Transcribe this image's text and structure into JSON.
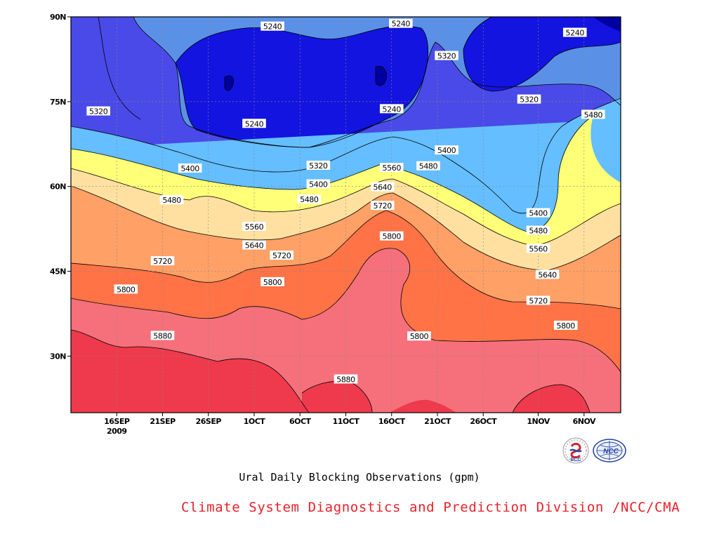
{
  "chart_data": {
    "type": "contour",
    "title": "Ural Daily Blocking Observations (gpm)",
    "zunits": "gpm",
    "xlabel": "",
    "ylabel": "",
    "y_ticks": [
      "90N",
      "75N",
      "60N",
      "45N",
      "30N"
    ],
    "y_tick_values": [
      90,
      75,
      60,
      45,
      30
    ],
    "ylim": [
      20,
      90
    ],
    "xlim": [
      "2009-09-11",
      "2009-11-10"
    ],
    "x_ticks": [
      {
        "label": "16SEP",
        "date": "2009-09-16",
        "sub": "2009"
      },
      {
        "label": "21SEP",
        "date": "2009-09-21",
        "sub": ""
      },
      {
        "label": "26SEP",
        "date": "2009-09-26",
        "sub": ""
      },
      {
        "label": "1OCT",
        "date": "2009-10-01",
        "sub": ""
      },
      {
        "label": "6OCT",
        "date": "2009-10-06",
        "sub": ""
      },
      {
        "label": "11OCT",
        "date": "2009-10-11",
        "sub": ""
      },
      {
        "label": "16OCT",
        "date": "2009-10-16",
        "sub": ""
      },
      {
        "label": "21OCT",
        "date": "2009-10-21",
        "sub": ""
      },
      {
        "label": "26OCT",
        "date": "2009-10-26",
        "sub": ""
      },
      {
        "label": "1NOV",
        "date": "2009-11-01",
        "sub": ""
      },
      {
        "label": "6NOV",
        "date": "2009-11-06",
        "sub": ""
      }
    ],
    "grid": true,
    "levels": [
      5160,
      5240,
      5320,
      5400,
      5480,
      5560,
      5640,
      5720,
      5800,
      5880
    ],
    "fill_colors": [
      "#0000a0",
      "#1414e0",
      "#4a4ae8",
      "#5a91e6",
      "#64beff",
      "#ffff78",
      "#ffe0a0",
      "#ffa066",
      "#ff7346",
      "#f5707a",
      "#ee3a4c"
    ],
    "contour_labels": [
      {
        "value": "5240",
        "date": "2009-10-03",
        "lat": 88.3
      },
      {
        "value": "5240",
        "date": "2009-10-17",
        "lat": 88.8
      },
      {
        "value": "5240",
        "date": "2009-11-05",
        "lat": 87.2
      },
      {
        "value": "5320",
        "date": "2009-10-22",
        "lat": 83.1
      },
      {
        "value": "5320",
        "date": "2009-09-14",
        "lat": 73.3
      },
      {
        "value": "5320",
        "date": "2009-10-31",
        "lat": 75.4
      },
      {
        "value": "5240",
        "date": "2009-10-16",
        "lat": 73.7
      },
      {
        "value": "5240",
        "date": "2009-10-01",
        "lat": 71.1
      },
      {
        "value": "5480",
        "date": "2009-11-07",
        "lat": 72.7
      },
      {
        "value": "5400",
        "date": "2009-10-22",
        "lat": 66.4
      },
      {
        "value": "5320",
        "date": "2009-10-08",
        "lat": 63.7
      },
      {
        "value": "5560",
        "date": "2009-10-16",
        "lat": 63.3
      },
      {
        "value": "5480",
        "date": "2009-10-20",
        "lat": 63.6
      },
      {
        "value": "5400",
        "date": "2009-09-24",
        "lat": 63.2
      },
      {
        "value": "5400",
        "date": "2009-10-08",
        "lat": 60.4
      },
      {
        "value": "5640",
        "date": "2009-10-15",
        "lat": 59.9
      },
      {
        "value": "5480",
        "date": "2009-09-22",
        "lat": 57.6
      },
      {
        "value": "5480",
        "date": "2009-10-07",
        "lat": 57.7
      },
      {
        "value": "5720",
        "date": "2009-10-15",
        "lat": 56.6
      },
      {
        "value": "5400",
        "date": "2009-11-01",
        "lat": 55.3
      },
      {
        "value": "5560",
        "date": "2009-10-01",
        "lat": 52.9
      },
      {
        "value": "5480",
        "date": "2009-11-01",
        "lat": 52.2
      },
      {
        "value": "5800",
        "date": "2009-10-16",
        "lat": 51.2
      },
      {
        "value": "5640",
        "date": "2009-10-01",
        "lat": 49.6
      },
      {
        "value": "5560",
        "date": "2009-11-01",
        "lat": 49.0
      },
      {
        "value": "5720",
        "date": "2009-10-04",
        "lat": 47.8
      },
      {
        "value": "5720",
        "date": "2009-09-21",
        "lat": 46.8
      },
      {
        "value": "5640",
        "date": "2009-11-02",
        "lat": 44.4
      },
      {
        "value": "5800",
        "date": "2009-09-17",
        "lat": 41.8
      },
      {
        "value": "5800",
        "date": "2009-10-03",
        "lat": 43.1
      },
      {
        "value": "5720",
        "date": "2009-11-01",
        "lat": 39.8
      },
      {
        "value": "5800",
        "date": "2009-11-04",
        "lat": 35.4
      },
      {
        "value": "5800",
        "date": "2009-10-19",
        "lat": 33.5
      },
      {
        "value": "5880",
        "date": "2009-09-21",
        "lat": 33.6
      },
      {
        "value": "5880",
        "date": "2009-10-11",
        "lat": 25.9
      }
    ]
  },
  "footer": {
    "credit": "Climate System Diagnostics and Prediction Division /NCC/CMA"
  },
  "logos": {
    "bcc_text": "BCC",
    "ncc_text": "NCC"
  },
  "colors": {
    "credit_text": "#e8202a",
    "frame": "#000000",
    "grid": "#888888"
  }
}
